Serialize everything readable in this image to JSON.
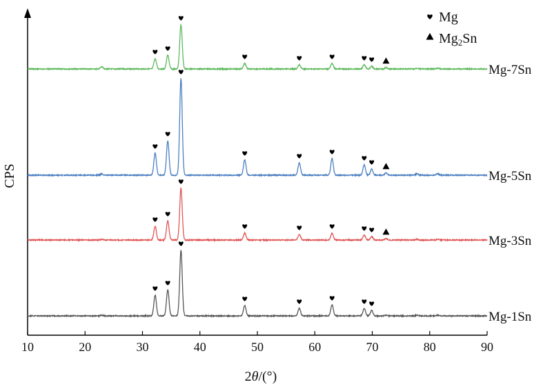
{
  "chart_data": {
    "type": "line",
    "title": "",
    "xlabel": "2θ/(°)",
    "ylabel": "CPS",
    "xlim": [
      10,
      90
    ],
    "xticks": [
      10,
      20,
      30,
      40,
      50,
      60,
      70,
      80,
      90
    ],
    "y_ticks_shown": false,
    "grid": false,
    "legend_position": "top-right",
    "legend": [
      {
        "label": "Mg",
        "marker": "heart"
      },
      {
        "label": "Mg2Sn",
        "marker": "triangle"
      }
    ],
    "peaks": {
      "Mg": [
        32.2,
        34.4,
        36.7,
        47.8,
        57.3,
        63.0,
        68.6,
        69.9
      ],
      "Mg2Sn": [
        72.4
      ]
    },
    "series": [
      {
        "name": "Mg-7Sn",
        "color": "#5cb85c",
        "peaks": [
          [
            22.9,
            0.03
          ],
          [
            32.2,
            0.15
          ],
          [
            34.4,
            0.2
          ],
          [
            36.7,
            0.64
          ],
          [
            47.8,
            0.08
          ],
          [
            57.3,
            0.06
          ],
          [
            63.0,
            0.08
          ],
          [
            68.6,
            0.06
          ],
          [
            69.9,
            0.04
          ],
          [
            72.4,
            0.02
          ],
          [
            77.8,
            0.01
          ],
          [
            81.4,
            0.01
          ]
        ],
        "marked_peaks": [
          [
            32.2,
            "Mg"
          ],
          [
            34.4,
            "Mg"
          ],
          [
            36.7,
            "Mg"
          ],
          [
            47.8,
            "Mg"
          ],
          [
            57.3,
            "Mg"
          ],
          [
            63.0,
            "Mg"
          ],
          [
            68.6,
            "Mg"
          ],
          [
            69.9,
            "Mg"
          ],
          [
            72.4,
            "Mg2Sn"
          ]
        ]
      },
      {
        "name": "Mg-5Sn",
        "color": "#4a7fc1",
        "peaks": [
          [
            22.9,
            0.02
          ],
          [
            32.2,
            0.32
          ],
          [
            34.4,
            0.5
          ],
          [
            36.7,
            1.4
          ],
          [
            47.8,
            0.22
          ],
          [
            57.3,
            0.18
          ],
          [
            63.0,
            0.24
          ],
          [
            68.6,
            0.15
          ],
          [
            69.9,
            0.09
          ],
          [
            72.4,
            0.03
          ],
          [
            77.8,
            0.02
          ],
          [
            81.4,
            0.02
          ]
        ],
        "marked_peaks": [
          [
            32.2,
            "Mg"
          ],
          [
            34.4,
            "Mg"
          ],
          [
            36.7,
            "Mg"
          ],
          [
            47.8,
            "Mg"
          ],
          [
            57.3,
            "Mg"
          ],
          [
            63.0,
            "Mg"
          ],
          [
            68.6,
            "Mg"
          ],
          [
            69.9,
            "Mg"
          ],
          [
            72.4,
            "Mg2Sn"
          ]
        ]
      },
      {
        "name": "Mg-3Sn",
        "color": "#e05555",
        "peaks": [
          [
            22.9,
            0.01
          ],
          [
            32.2,
            0.2
          ],
          [
            34.4,
            0.28
          ],
          [
            36.7,
            0.75
          ],
          [
            47.8,
            0.1
          ],
          [
            57.3,
            0.08
          ],
          [
            63.0,
            0.1
          ],
          [
            68.6,
            0.07
          ],
          [
            69.9,
            0.05
          ],
          [
            72.4,
            0.02
          ],
          [
            77.8,
            0.01
          ],
          [
            81.4,
            0.01
          ]
        ],
        "marked_peaks": [
          [
            32.2,
            "Mg"
          ],
          [
            34.4,
            "Mg"
          ],
          [
            36.7,
            "Mg"
          ],
          [
            47.8,
            "Mg"
          ],
          [
            57.3,
            "Mg"
          ],
          [
            63.0,
            "Mg"
          ],
          [
            68.6,
            "Mg"
          ],
          [
            69.9,
            "Mg"
          ],
          [
            72.4,
            "Mg2Sn"
          ]
        ]
      },
      {
        "name": "Mg-1Sn",
        "color": "#555555",
        "peaks": [
          [
            22.9,
            0.01
          ],
          [
            32.2,
            0.3
          ],
          [
            34.4,
            0.38
          ],
          [
            36.7,
            0.95
          ],
          [
            47.8,
            0.15
          ],
          [
            57.3,
            0.11
          ],
          [
            63.0,
            0.16
          ],
          [
            68.6,
            0.11
          ],
          [
            69.9,
            0.08
          ],
          [
            72.4,
            0.01
          ],
          [
            77.8,
            0.01
          ],
          [
            81.4,
            0.01
          ]
        ],
        "marked_peaks": [
          [
            32.2,
            "Mg"
          ],
          [
            34.4,
            "Mg"
          ],
          [
            36.7,
            "Mg"
          ],
          [
            47.8,
            "Mg"
          ],
          [
            57.3,
            "Mg"
          ],
          [
            63.0,
            "Mg"
          ],
          [
            68.6,
            "Mg"
          ],
          [
            69.9,
            "Mg"
          ]
        ]
      }
    ]
  }
}
